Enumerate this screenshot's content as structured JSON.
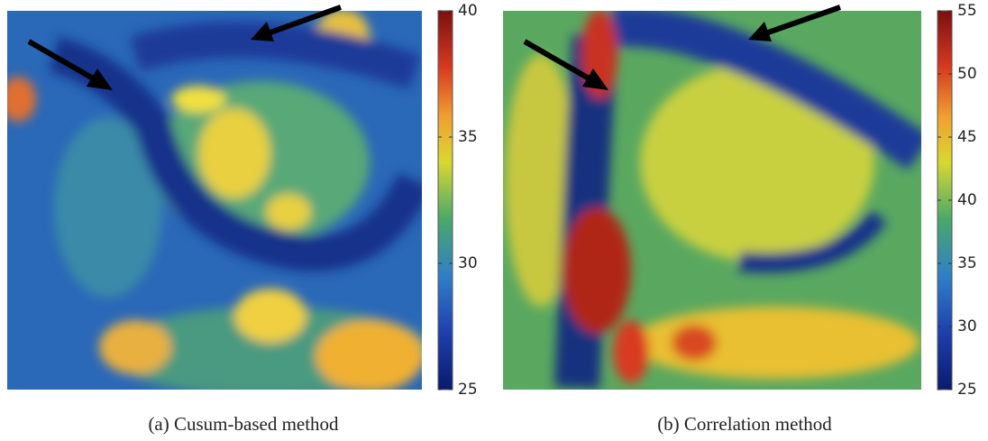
{
  "figures": [
    {
      "caption": "(a) Cusum-based method",
      "colorbar": {
        "lim": [
          25,
          40
        ],
        "ticks": [
          25,
          30,
          35,
          40
        ]
      }
    },
    {
      "caption": "(b) Correlation method",
      "colorbar": {
        "lim": [
          25,
          55
        ],
        "ticks": [
          25,
          30,
          35,
          40,
          45,
          50,
          55
        ]
      }
    }
  ]
}
